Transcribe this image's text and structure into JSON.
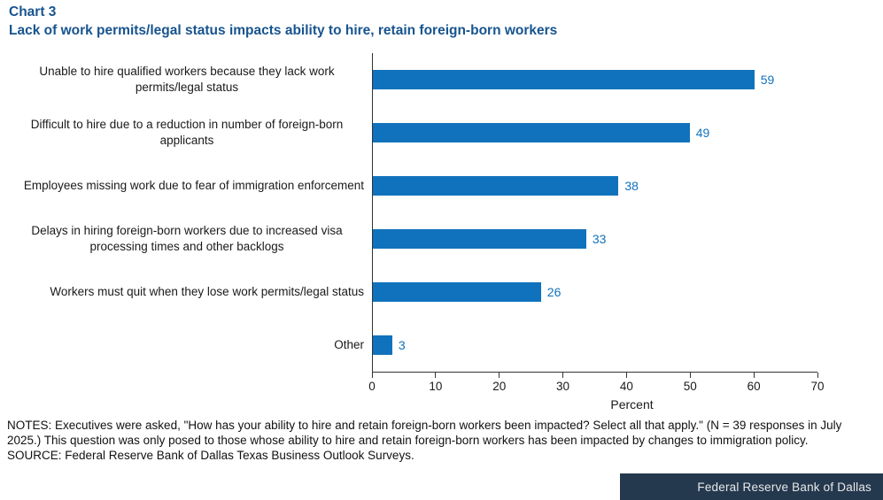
{
  "header": {
    "chart_number": "Chart 3",
    "title": "Lack of work permits/legal status impacts ability to hire, retain foreign-born workers"
  },
  "chart_data": {
    "type": "bar",
    "orientation": "horizontal",
    "title": "Lack of work permits/legal status impacts ability to hire, retain foreign-born workers",
    "categories": [
      "Unable to hire qualified workers because they lack work permits/legal status",
      "Difficult to hire due to a reduction in number of foreign-born applicants",
      "Employees missing work due to fear of immigration enforcement",
      "Delays in hiring foreign-born workers due to increased visa processing times and other backlogs",
      "Workers must quit when they lose work permits/legal status",
      "Other"
    ],
    "values": [
      59,
      49,
      38,
      33,
      26,
      3
    ],
    "xlabel": "Percent",
    "ylabel": "",
    "xlim": [
      0,
      70
    ],
    "xticks": [
      0,
      10,
      20,
      30,
      40,
      50,
      60,
      70
    ],
    "grid": false,
    "data_labels": true,
    "legend": "none"
  },
  "colors": {
    "bar": "#1072bc",
    "value_label": "#1072bc",
    "title_text": "#17548f",
    "axis": "#333333",
    "footer_background": "#24384e",
    "footer_text": "#e9e9e9"
  },
  "notes": {
    "notes_text": "NOTES: Executives were asked, \"How has your ability to hire and retain foreign-born workers been impacted? Select all that apply.\" (N = 39 responses in July 2025.) This question was only posed to those whose ability to hire and retain foreign-born workers has been impacted by changes to immigration policy.",
    "source_text": "SOURCE: Federal Reserve Bank of Dallas Texas Business Outlook Surveys."
  },
  "footer": {
    "text": "Federal Reserve Bank of Dallas"
  }
}
